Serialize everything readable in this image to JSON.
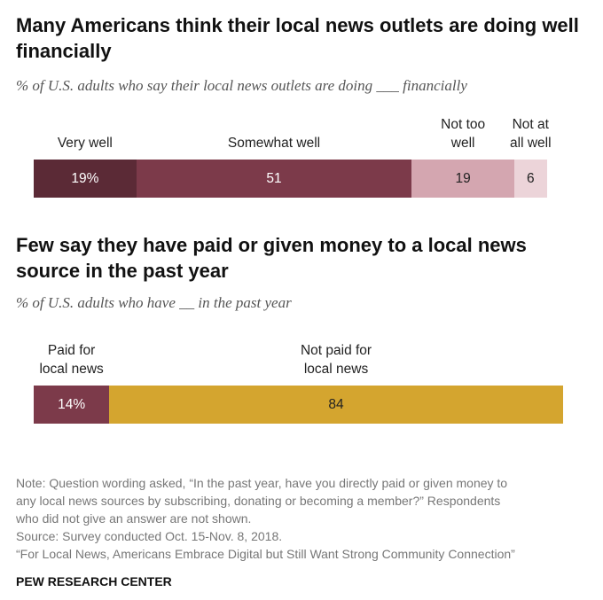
{
  "chart_data": [
    {
      "type": "stacked_bar",
      "title": "Many Americans think their local news outlets are doing well financially",
      "subtitle": "% of U.S. adults who say their local news outlets are doing ___ financially",
      "categories": [
        "Very well",
        "Somewhat well",
        "Not too\nwell",
        "Not at\nall well"
      ],
      "values": [
        19,
        51,
        19,
        6
      ],
      "value_labels": [
        "19%",
        "51",
        "19",
        "6"
      ],
      "colors": [
        "#5b2a36",
        "#7c3a4a",
        "#d4a6b0",
        "#ecd4d9"
      ],
      "xlim": [
        0,
        100
      ]
    },
    {
      "type": "stacked_bar",
      "title": "Few say they have paid or given money to a local news source in the past year",
      "subtitle": "% of U.S. adults who have __ in the past year",
      "categories": [
        "Paid for\nlocal news",
        "Not paid for\nlocal news"
      ],
      "values": [
        14,
        84
      ],
      "value_labels": [
        "14%",
        "84"
      ],
      "colors": [
        "#7c3a4a",
        "#d4a52f"
      ],
      "xlim": [
        0,
        100
      ]
    }
  ],
  "footer": {
    "note": "Note: Question wording asked, “In the past year, have you directly paid or given money to\nany local news sources by subscribing, donating or becoming a member?” Respondents\nwho did not give an answer are not shown.",
    "source": "Source: Survey conducted Oct. 15-Nov. 8, 2018.",
    "report": "“For Local News, Americans Embrace Digital but Still Want Strong Community Connection”",
    "brand": "PEW RESEARCH CENTER"
  }
}
